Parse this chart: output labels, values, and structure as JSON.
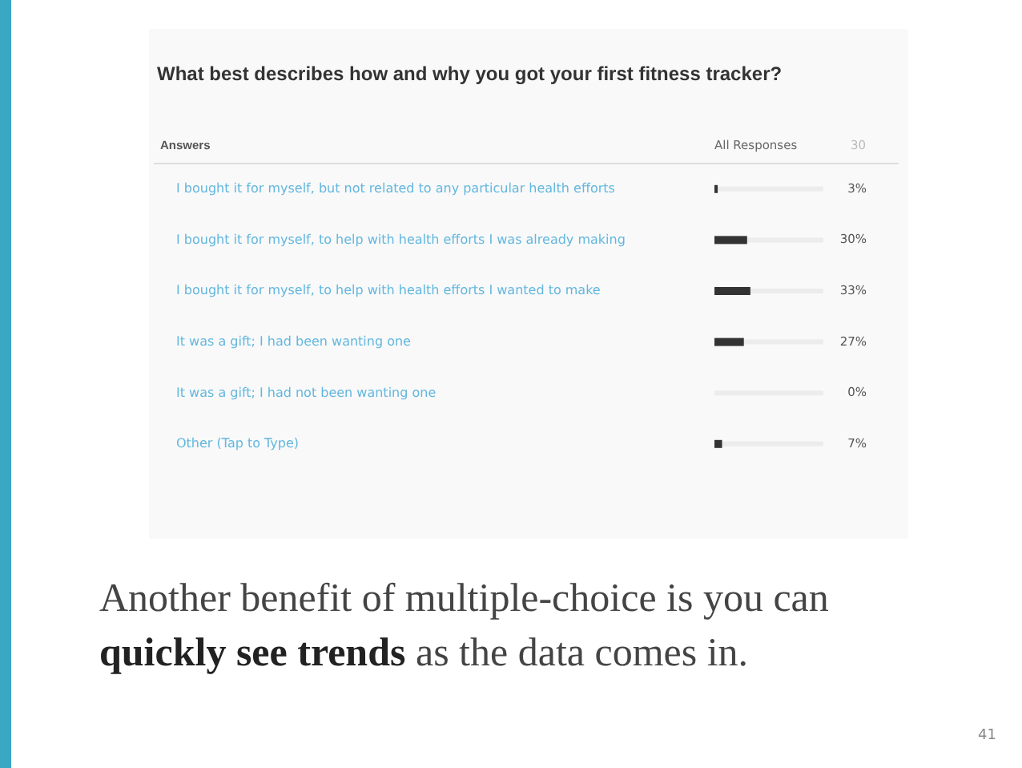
{
  "chart_data": {
    "type": "bar",
    "orientation": "horizontal",
    "title": "What best describes how and why you got your first fitness tracker?",
    "categories": [
      "I bought it for myself, but not related to any particular health efforts",
      "I bought it for myself, to help with health efforts I was already making",
      "I bought it for myself, to help with health efforts I wanted to make",
      "It was a gift; I had been wanting one",
      "It was a gift; I had not been wanting one",
      "Other (Tap to Type)"
    ],
    "values": [
      3,
      30,
      33,
      27,
      0,
      7
    ],
    "color": "#333333",
    "value_labels": [
      "3%",
      "30%",
      "33%",
      "27%",
      "0%",
      "7%"
    ],
    "xlim": [
      0,
      100
    ],
    "tick_labels": "y",
    "annotations": [
      "Answers",
      "All Responses",
      "30",
      "Another benefit of multiple-choice is you can",
      "quickly see trends",
      "as the data comes in.",
      "41"
    ]
  }
}
